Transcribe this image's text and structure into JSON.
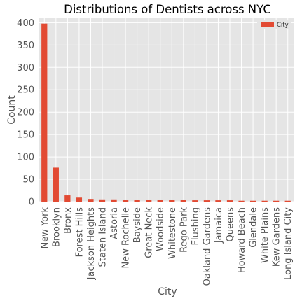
{
  "chart_data": {
    "type": "bar",
    "title": "Distributions of Dentists across NYC",
    "xlabel": "City",
    "ylabel": "Count",
    "ylim": [
      0,
      410
    ],
    "yticks": [
      0,
      50,
      100,
      150,
      200,
      250,
      300,
      350,
      400
    ],
    "grid": true,
    "legend_position": "top-right",
    "categories": [
      "New York",
      "Brooklyn",
      "Bronx",
      "Forest Hills",
      "Jackson Heights",
      "Staten Island",
      "Astoria",
      "New Rochelle",
      "Bayside",
      "Great Neck",
      "Woodside",
      "Whitestone",
      "Rego Park",
      "Flushing",
      "Oakland Gardens",
      "Jamaica",
      "Queens",
      "Howard Beach",
      "Glendale",
      "White Plains",
      "Kew Gardens",
      "Long Island City"
    ],
    "series": [
      {
        "name": "City",
        "color": "#e24a33",
        "values": [
          398,
          76,
          14,
          9,
          6,
          5,
          5,
          4,
          4,
          4,
          4,
          4,
          4,
          3,
          3,
          3,
          3,
          2,
          2,
          2,
          2,
          2
        ]
      }
    ]
  },
  "colors": {
    "plot_background": "#e5e5e5",
    "grid": "#ffffff",
    "bar": "#e24a33"
  }
}
